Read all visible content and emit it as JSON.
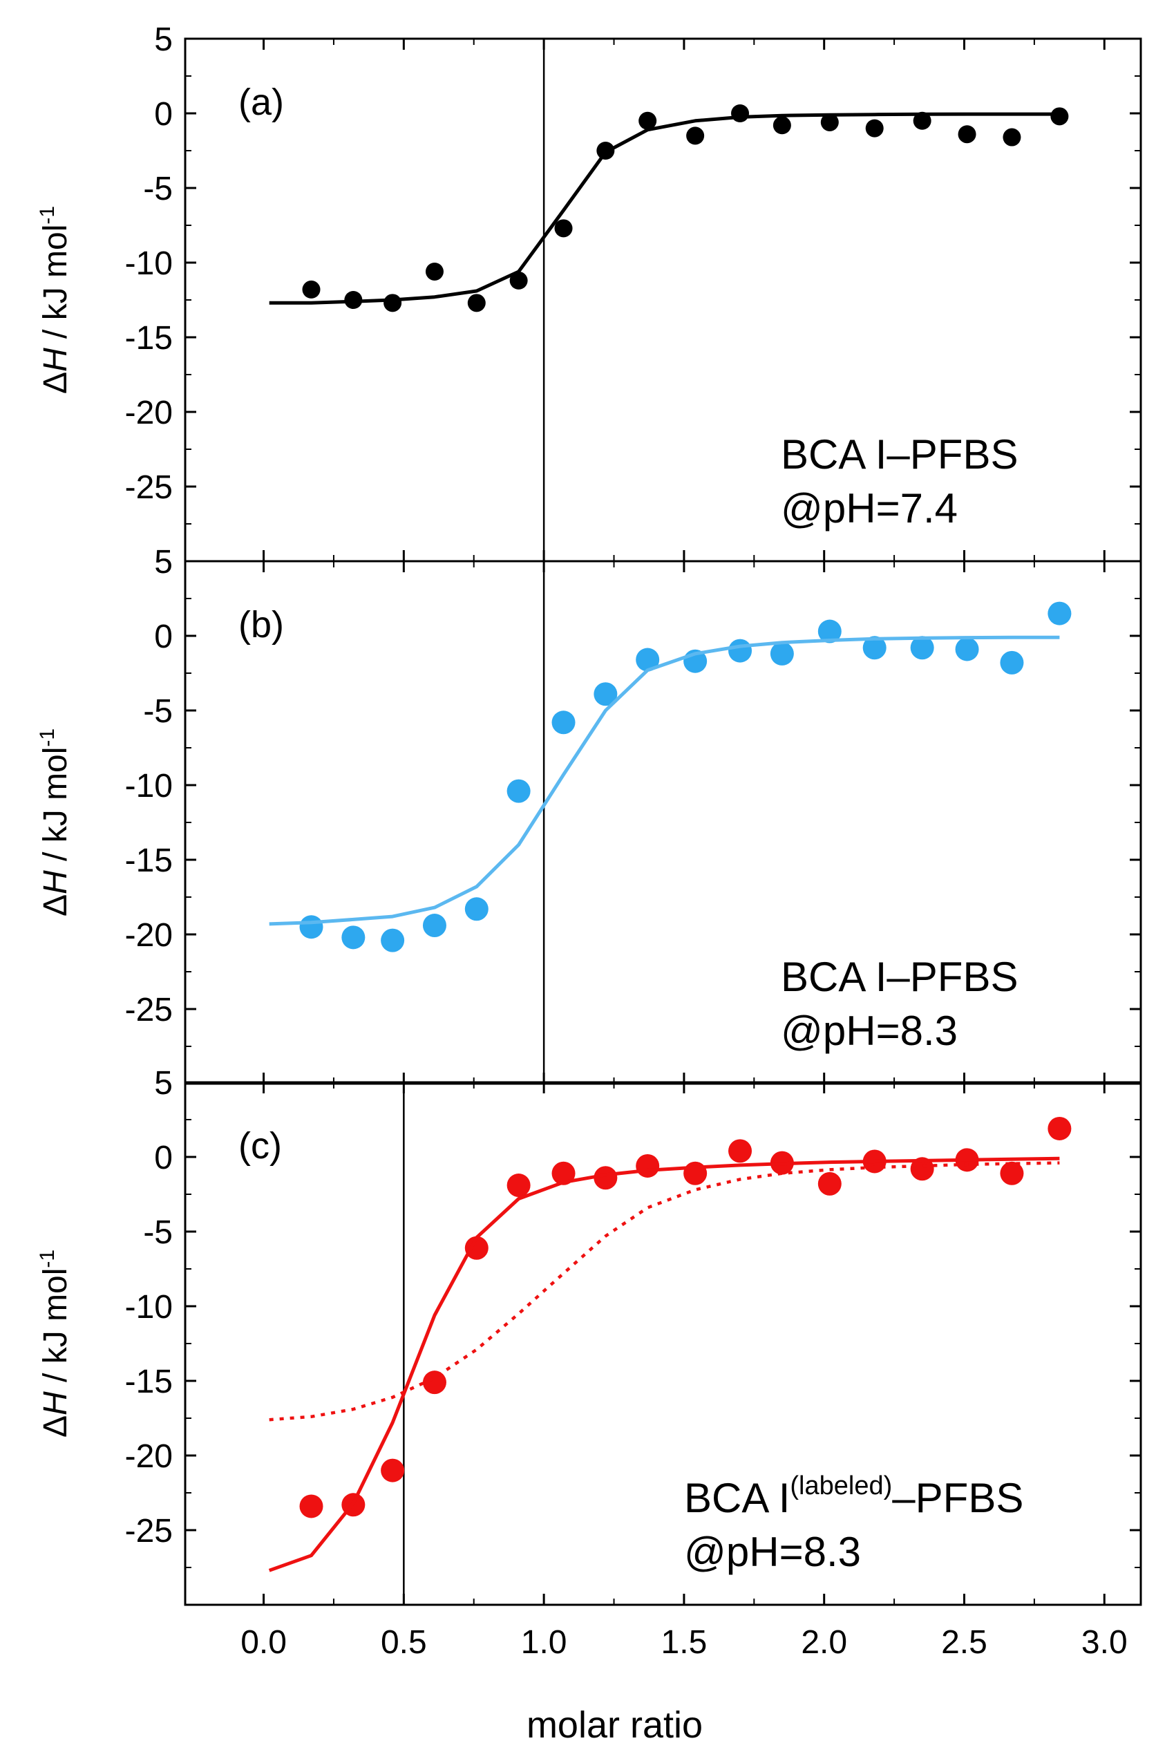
{
  "chart_data": {
    "shared": {
      "xlabel": "molar ratio",
      "xlim": [
        -0.28,
        3.13
      ],
      "xticks": [
        "0.0",
        "0.5",
        "1.0",
        "1.5",
        "2.0",
        "2.5",
        "3.0"
      ],
      "ylabel_prefix": "Δ",
      "ylabel_var": "H",
      "ylabel_unit": " / kJ mol",
      "ylabel_exp": "-1",
      "ylim": [
        -30,
        5
      ],
      "yticks": [
        "5",
        "0",
        "-5",
        "-10",
        "-15",
        "-20",
        "-25"
      ]
    },
    "panels": [
      {
        "type": "scatter",
        "panel_label": "(a)",
        "color": "#000000",
        "annotation_line1": "BCA I–PFBS",
        "annotation_line1_sup": "",
        "annotation_line1_tail": "",
        "annotation_line2": "@pH=7.4",
        "vline_x": 1.0,
        "series": [
          {
            "name": "measured",
            "x": [
              0.17,
              0.32,
              0.46,
              0.61,
              0.76,
              0.91,
              1.07,
              1.22,
              1.37,
              1.54,
              1.7,
              1.85,
              2.02,
              2.18,
              2.35,
              2.51,
              2.67,
              2.84
            ],
            "y": [
              -11.8,
              -12.5,
              -12.7,
              -10.6,
              -12.7,
              -11.2,
              -7.7,
              -2.5,
              -0.5,
              -1.5,
              0.0,
              -0.8,
              -0.6,
              -1.0,
              -0.5,
              -1.4,
              -1.6,
              -0.2
            ]
          },
          {
            "name": "fit",
            "style": "solid",
            "x": [
              0.02,
              0.17,
              0.32,
              0.46,
              0.61,
              0.76,
              0.91,
              1.07,
              1.22,
              1.37,
              1.54,
              1.7,
              1.85,
              2.02,
              2.18,
              2.35,
              2.51,
              2.67,
              2.84
            ],
            "y": [
              -12.7,
              -12.7,
              -12.6,
              -12.5,
              -12.3,
              -11.9,
              -10.6,
              -6.5,
              -2.6,
              -1.1,
              -0.5,
              -0.25,
              -0.15,
              -0.1,
              -0.08,
              -0.06,
              -0.05,
              -0.05,
              -0.05
            ]
          }
        ]
      },
      {
        "type": "scatter",
        "panel_label": "(b)",
        "color": "#2ea8ef",
        "line_color": "#5bb8f0",
        "annotation_line1": "BCA I–PFBS",
        "annotation_line1_sup": "",
        "annotation_line1_tail": "",
        "annotation_line2": "@pH=8.3",
        "vline_x": 1.0,
        "series": [
          {
            "name": "measured",
            "x": [
              0.17,
              0.32,
              0.46,
              0.61,
              0.76,
              0.91,
              1.07,
              1.22,
              1.37,
              1.54,
              1.7,
              1.85,
              2.02,
              2.18,
              2.35,
              2.51,
              2.67,
              2.84
            ],
            "y": [
              -19.5,
              -20.2,
              -20.4,
              -19.4,
              -18.3,
              -10.4,
              -5.8,
              -3.9,
              -1.6,
              -1.7,
              -1.0,
              -1.2,
              0.3,
              -0.8,
              -0.8,
              -0.9,
              -1.8,
              1.5
            ]
          },
          {
            "name": "fit",
            "style": "solid",
            "x": [
              0.02,
              0.17,
              0.32,
              0.46,
              0.61,
              0.76,
              0.91,
              1.07,
              1.22,
              1.37,
              1.54,
              1.7,
              1.85,
              2.02,
              2.18,
              2.35,
              2.51,
              2.67,
              2.84
            ],
            "y": [
              -19.3,
              -19.2,
              -19.0,
              -18.8,
              -18.2,
              -16.8,
              -14.0,
              -9.3,
              -5.0,
              -2.3,
              -1.2,
              -0.7,
              -0.45,
              -0.3,
              -0.2,
              -0.15,
              -0.12,
              -0.1,
              -0.1
            ]
          }
        ]
      },
      {
        "type": "scatter",
        "panel_label": "(c)",
        "color": "#ee1111",
        "annotation_line1": "BCA I",
        "annotation_line1_sup": "(labeled)",
        "annotation_line1_tail": "–PFBS",
        "annotation_line2": "@pH=8.3",
        "vline_x": 0.5,
        "series": [
          {
            "name": "measured",
            "x": [
              0.17,
              0.32,
              0.46,
              0.61,
              0.76,
              0.91,
              1.07,
              1.22,
              1.37,
              1.54,
              1.7,
              1.85,
              2.02,
              2.18,
              2.35,
              2.51,
              2.67,
              2.84
            ],
            "y": [
              -23.4,
              -23.3,
              -21.0,
              -15.1,
              -6.1,
              -1.9,
              -1.1,
              -1.4,
              -0.6,
              -1.1,
              0.4,
              -0.4,
              -1.8,
              -0.3,
              -0.8,
              -0.2,
              -1.1,
              1.9
            ]
          },
          {
            "name": "fit",
            "style": "solid",
            "x": [
              0.02,
              0.17,
              0.32,
              0.46,
              0.61,
              0.76,
              0.91,
              1.07,
              1.22,
              1.37,
              1.54,
              1.7,
              1.85,
              2.02,
              2.18,
              2.35,
              2.51,
              2.67,
              2.84
            ],
            "y": [
              -27.7,
              -26.7,
              -23.2,
              -17.8,
              -10.6,
              -5.4,
              -2.8,
              -1.7,
              -1.2,
              -0.9,
              -0.7,
              -0.55,
              -0.45,
              -0.35,
              -0.3,
              -0.25,
              -0.2,
              -0.15,
              -0.1
            ]
          },
          {
            "name": "fit (dotted)",
            "style": "dotted",
            "x": [
              0.02,
              0.17,
              0.32,
              0.46,
              0.61,
              0.76,
              0.91,
              1.07,
              1.22,
              1.37,
              1.54,
              1.7,
              1.85,
              2.02,
              2.18,
              2.35,
              2.51,
              2.67,
              2.84
            ],
            "y": [
              -17.6,
              -17.4,
              -16.9,
              -16.1,
              -14.8,
              -12.9,
              -10.5,
              -7.8,
              -5.3,
              -3.4,
              -2.2,
              -1.5,
              -1.1,
              -0.85,
              -0.7,
              -0.6,
              -0.5,
              -0.45,
              -0.4
            ]
          }
        ]
      }
    ]
  }
}
